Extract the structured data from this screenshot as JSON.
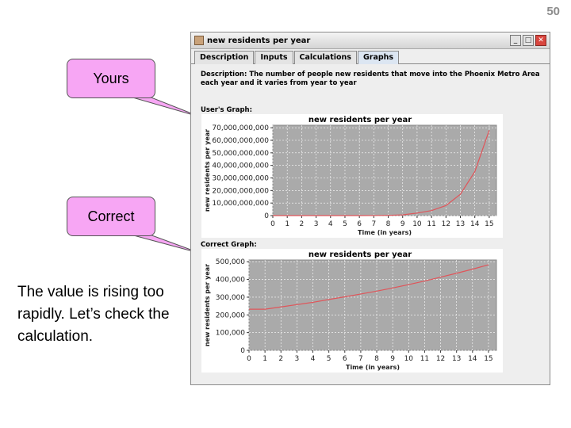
{
  "slide": {
    "number": "50",
    "callouts": {
      "yours": "Yours",
      "correct": "Correct"
    },
    "note": "The value is rising too rapidly.  Let’s check the calculation."
  },
  "window": {
    "title": "new residents per year",
    "tabs": [
      {
        "label": "Description",
        "active": false
      },
      {
        "label": "Inputs",
        "active": false
      },
      {
        "label": "Calculations",
        "active": false
      },
      {
        "label": "Graphs",
        "active": true
      }
    ],
    "description": "Description: The number of people new residents that move into the Phoenix Metro Area each year and it varies from year to year",
    "users_graph_label": "User's Graph:",
    "correct_graph_label": "Correct Graph:"
  },
  "chart_data": [
    {
      "type": "line",
      "title": "new residents per year",
      "xlabel": "Time (in years)",
      "ylabel": "new residents per year",
      "x": [
        0,
        1,
        2,
        3,
        4,
        5,
        6,
        7,
        8,
        9,
        10,
        11,
        12,
        13,
        14,
        15
      ],
      "series": [
        {
          "values": [
            0,
            0,
            0,
            0,
            0,
            0,
            0,
            50000000,
            200000000,
            600000000,
            2000000000,
            4000000000,
            8000000000,
            17000000000,
            35000000000,
            68000000000
          ]
        }
      ],
      "xticks": [
        "0",
        "1",
        "2",
        "3",
        "4",
        "5",
        "6",
        "7",
        "8",
        "9",
        "10",
        "11",
        "12",
        "13",
        "14",
        "15"
      ],
      "yticks": [
        "0",
        "10,000,000,000",
        "20,000,000,000",
        "30,000,000,000",
        "40,000,000,000",
        "50,000,000,000",
        "60,000,000,000",
        "70,000,000,000"
      ],
      "ytick_values": [
        0,
        10000000000,
        20000000000,
        30000000000,
        40000000000,
        50000000000,
        60000000000,
        70000000000
      ],
      "xlim": [
        0,
        15.5
      ],
      "ylim": [
        0,
        72000000000
      ],
      "grid": true,
      "line_color": "#e0555a",
      "plot_bg": "#aaaaaa"
    },
    {
      "type": "line",
      "title": "new residents per year",
      "xlabel": "Time (in years)",
      "ylabel": "new residents per year",
      "x": [
        0,
        1,
        2,
        3,
        4,
        5,
        6,
        7,
        8,
        9,
        10,
        11,
        12,
        13,
        14,
        15
      ],
      "series": [
        {
          "values": [
            232000,
            232000,
            245000,
            258000,
            271000,
            287000,
            302000,
            318000,
            334000,
            352000,
            371000,
            391000,
            413000,
            435000,
            458000,
            483000
          ]
        }
      ],
      "xticks": [
        "0",
        "1",
        "2",
        "3",
        "4",
        "5",
        "6",
        "7",
        "8",
        "9",
        "10",
        "11",
        "12",
        "13",
        "14",
        "15"
      ],
      "yticks": [
        "0",
        "100,000",
        "200,000",
        "300,000",
        "400,000",
        "500,000"
      ],
      "ytick_values": [
        0,
        100000,
        200000,
        300000,
        400000,
        500000
      ],
      "xlim": [
        0,
        15.5
      ],
      "ylim": [
        0,
        510000
      ],
      "grid": true,
      "line_color": "#e0555a",
      "plot_bg": "#aaaaaa"
    }
  ]
}
